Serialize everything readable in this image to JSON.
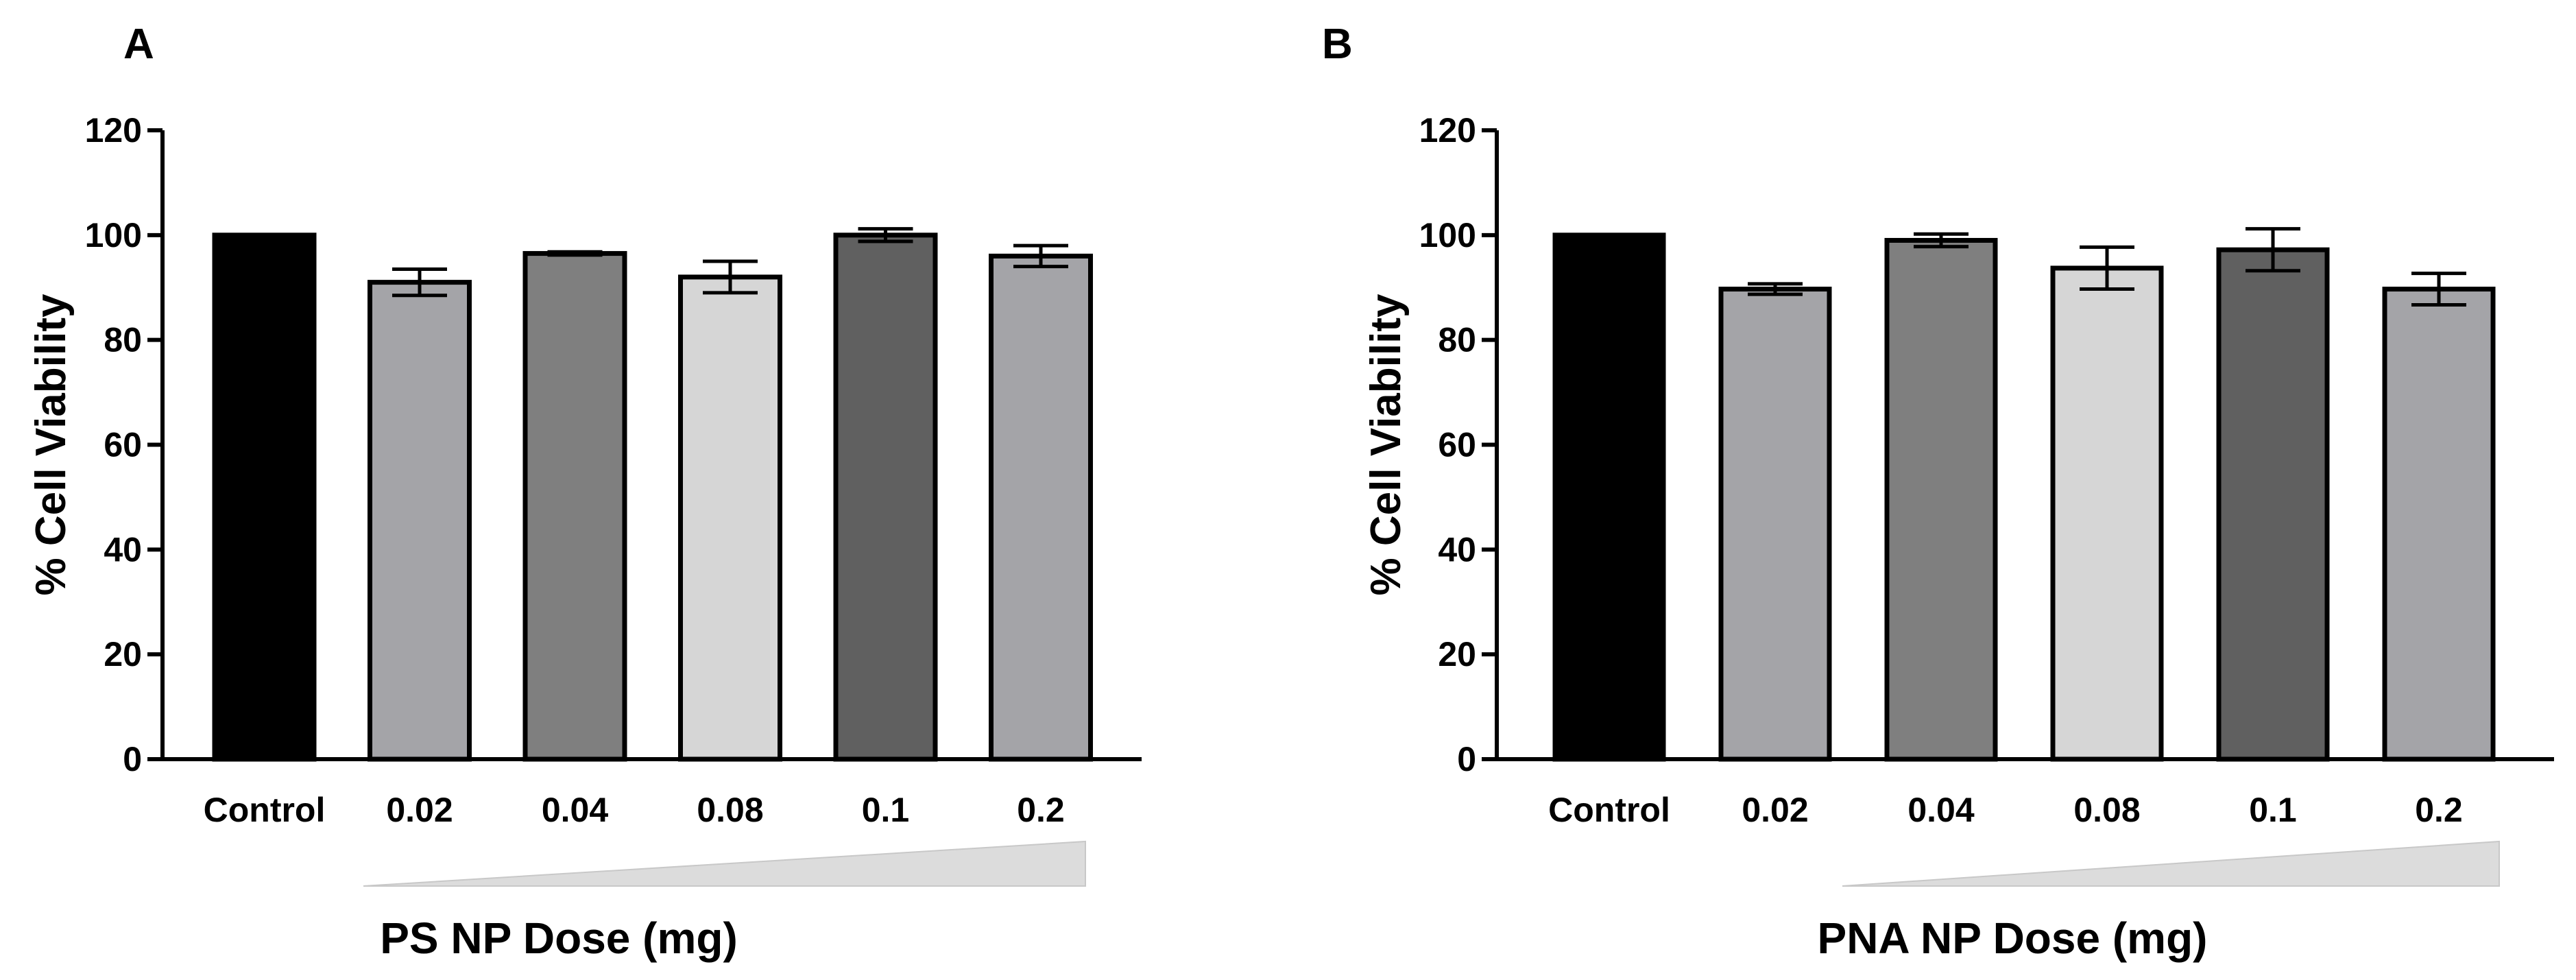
{
  "chart_data": [
    {
      "type": "bar",
      "panel": "A",
      "title": "",
      "xlabel": "PS NP Dose (mg)",
      "ylabel": "% Cell Viability",
      "ylim": [
        0,
        120
      ],
      "yticks": [
        "0",
        "20",
        "40",
        "60",
        "80",
        "100",
        "120"
      ],
      "categories": [
        "Control",
        "0.02",
        "0.04",
        "0.08",
        "0.1",
        "0.2"
      ],
      "values": [
        100,
        91,
        96.5,
        92,
        100,
        96
      ],
      "errors": [
        0,
        2.5,
        0.3,
        3,
        1.2,
        2
      ],
      "colors": [
        "#000000",
        "#a4a4a8",
        "#7f7f7f",
        "#d6d6d6",
        "#606060",
        "#a4a4a8"
      ],
      "dose_wedge": true,
      "grid": false
    },
    {
      "type": "bar",
      "panel": "B",
      "title": "",
      "xlabel": "PNA NP Dose (mg)",
      "ylabel": "% Cell Viability",
      "ylim": [
        0,
        120
      ],
      "yticks": [
        "0",
        "20",
        "40",
        "60",
        "80",
        "100",
        "120"
      ],
      "categories": [
        "Control",
        "0.02",
        "0.04",
        "0.08",
        "0.1",
        "0.2"
      ],
      "values": [
        100,
        89.7,
        99,
        93.7,
        97.2,
        89.7
      ],
      "errors": [
        0,
        1,
        1.2,
        4,
        4,
        3
      ],
      "colors": [
        "#000000",
        "#a4a4a8",
        "#7f7f7f",
        "#d6d6d6",
        "#606060",
        "#a4a4a8"
      ],
      "dose_wedge": true,
      "grid": false
    }
  ],
  "colors": {
    "axis": "#000000",
    "wedge": "#dcdcdc",
    "wedge_edge": "#c8c8c8"
  }
}
